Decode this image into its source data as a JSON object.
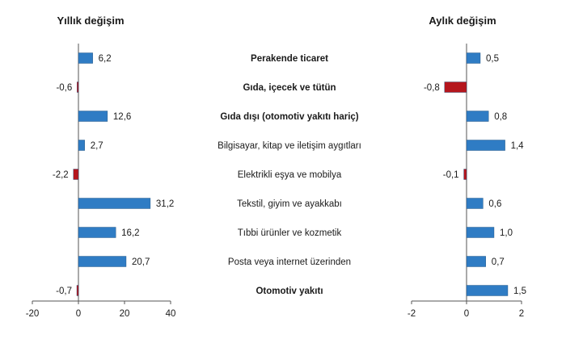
{
  "chart_data": [
    {
      "type": "bar",
      "orientation": "horizontal",
      "title": "Yıllık değişim",
      "categories": [
        "Perakende ticaret",
        "Gıda, içecek ve tütün",
        "Gıda dışı (otomotiv yakıtı hariç)",
        "Bilgisayar, kitap ve iletişim aygıtları",
        "Elektrikli eşya ve mobilya",
        "Tekstil, giyim ve ayakkabı",
        "Tıbbi ürünler ve kozmetik",
        "Posta veya internet üzerinden",
        "Otomotiv yakıtı"
      ],
      "values": [
        6.2,
        -0.6,
        12.6,
        2.7,
        -2.2,
        31.2,
        16.2,
        20.7,
        -0.7
      ],
      "value_labels": [
        "6,2",
        "-0,6",
        "12,6",
        "2,7",
        "-2,2",
        "31,2",
        "16,2",
        "20,7",
        "-0,7"
      ],
      "xlim": [
        -20,
        40
      ],
      "xticks": [
        -20,
        0,
        20,
        40
      ],
      "xtick_labels": [
        "-20",
        "0",
        "20",
        "40"
      ],
      "colors": {
        "positive": "#2f7cc4",
        "negative": "#b5161d"
      },
      "grid": false
    },
    {
      "type": "bar",
      "orientation": "horizontal",
      "title": "Aylık değişim",
      "categories": [
        "Perakende ticaret",
        "Gıda, içecek ve tütün",
        "Gıda dışı (otomotiv yakıtı hariç)",
        "Bilgisayar, kitap ve iletişim aygıtları",
        "Elektrikli eşya ve mobilya",
        "Tekstil, giyim ve ayakkabı",
        "Tıbbi ürünler ve kozmetik",
        "Posta veya internet üzerinden",
        "Otomotiv yakıtı"
      ],
      "values": [
        0.5,
        -0.8,
        0.8,
        1.4,
        -0.1,
        0.6,
        1.0,
        0.7,
        1.5
      ],
      "value_labels": [
        "0,5",
        "-0,8",
        "0,8",
        "1,4",
        "-0,1",
        "0,6",
        "1,0",
        "0,7",
        "1,5"
      ],
      "xlim": [
        -2,
        2
      ],
      "xticks": [
        -2,
        0,
        2
      ],
      "xtick_labels": [
        "-2",
        "0",
        "2"
      ],
      "colors": {
        "positive": "#2f7cc4",
        "negative": "#b5161d"
      },
      "grid": false
    }
  ],
  "bold_categories": [
    0,
    1,
    2,
    8
  ]
}
